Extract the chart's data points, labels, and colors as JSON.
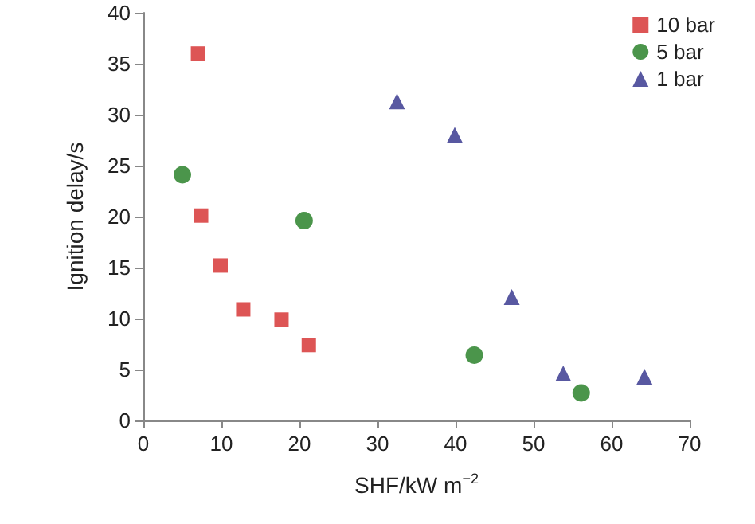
{
  "chart_data": {
    "type": "scatter",
    "xlabel": "SHF/kW m$^{−2}$",
    "ylabel": "Ignition delay/s",
    "xlim": [
      0,
      70
    ],
    "xticks": [
      0,
      10,
      20,
      30,
      40,
      50,
      60,
      70
    ],
    "ylim": [
      0,
      40
    ],
    "yticks": [
      0,
      5,
      10,
      15,
      20,
      25,
      30,
      35,
      40
    ],
    "grid": false,
    "legend": "top right",
    "series": [
      {
        "name": "10 bar",
        "color": "#d42a2a",
        "marker": "square",
        "x": [
          7.0,
          7.4,
          9.9,
          12.8,
          17.7,
          21.2
        ],
        "values": [
          36.0,
          20.1,
          15.2,
          10.9,
          9.9,
          7.4
        ]
      },
      {
        "name": "5 bar",
        "color": "#1e7a1e",
        "marker": "circle",
        "x": [
          5.0,
          20.6,
          42.4,
          56.1
        ],
        "values": [
          24.1,
          19.6,
          6.4,
          2.7
        ]
      },
      {
        "name": "1 bar",
        "color": "#2e2e8a",
        "marker": "triangle",
        "x": [
          32.5,
          39.9,
          47.2,
          53.8,
          64.2
        ],
        "values": [
          31.3,
          28.0,
          12.1,
          4.6,
          4.3
        ]
      }
    ]
  }
}
